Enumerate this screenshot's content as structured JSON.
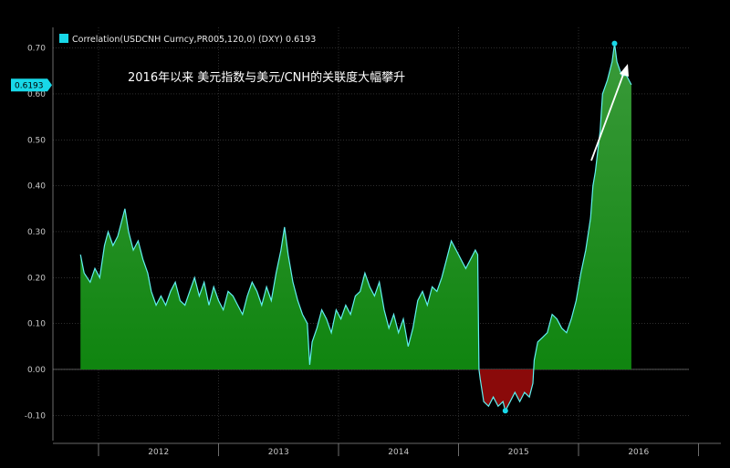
{
  "chart_data": {
    "type": "area",
    "title": "",
    "xlabel": "",
    "ylabel": "",
    "ylim": [
      -0.155,
      0.745
    ],
    "yticks": [
      "0.70",
      "0.60",
      "0.50",
      "0.40",
      "0.30",
      "0.20",
      "0.10",
      "0.00",
      "-0.10"
    ],
    "ytick_values": [
      0.7,
      0.6,
      0.5,
      0.4,
      0.3,
      0.2,
      0.1,
      0.0,
      -0.1
    ],
    "xlim": [
      2011.62,
      2016.92
    ],
    "xticks": [
      "2012",
      "2013",
      "2014",
      "2015",
      "2016"
    ],
    "legend": "Correlation(USDCNH Curncy,PR005,120,0) (DXY) 0.6193",
    "legend_color": "#18d8e8",
    "last_value_label": "0.6193",
    "last_value": 0.6193,
    "annotation": "2016年以来  美元指数与美元/CNH的关联度大幅攀升",
    "grid": true,
    "positive_fill_color": "#0a8a0a",
    "negative_fill_color": "#8a0a0a",
    "line_color": "#60f0f0",
    "series": [
      {
        "values": [
          [
            2011.85,
            0.25
          ],
          [
            2011.88,
            0.21
          ],
          [
            2011.93,
            0.19
          ],
          [
            2011.97,
            0.22
          ],
          [
            2012.01,
            0.2
          ],
          [
            2012.05,
            0.27
          ],
          [
            2012.08,
            0.3
          ],
          [
            2012.12,
            0.27
          ],
          [
            2012.16,
            0.29
          ],
          [
            2012.2,
            0.33
          ],
          [
            2012.22,
            0.35
          ],
          [
            2012.25,
            0.3
          ],
          [
            2012.29,
            0.26
          ],
          [
            2012.33,
            0.28
          ],
          [
            2012.37,
            0.24
          ],
          [
            2012.41,
            0.21
          ],
          [
            2012.44,
            0.17
          ],
          [
            2012.48,
            0.14
          ],
          [
            2012.52,
            0.16
          ],
          [
            2012.56,
            0.14
          ],
          [
            2012.6,
            0.17
          ],
          [
            2012.64,
            0.19
          ],
          [
            2012.68,
            0.15
          ],
          [
            2012.72,
            0.14
          ],
          [
            2012.76,
            0.17
          ],
          [
            2012.8,
            0.2
          ],
          [
            2012.84,
            0.16
          ],
          [
            2012.88,
            0.19
          ],
          [
            2012.92,
            0.14
          ],
          [
            2012.96,
            0.18
          ],
          [
            2013.0,
            0.15
          ],
          [
            2013.04,
            0.13
          ],
          [
            2013.08,
            0.17
          ],
          [
            2013.12,
            0.16
          ],
          [
            2013.16,
            0.14
          ],
          [
            2013.2,
            0.12
          ],
          [
            2013.24,
            0.16
          ],
          [
            2013.28,
            0.19
          ],
          [
            2013.32,
            0.17
          ],
          [
            2013.36,
            0.14
          ],
          [
            2013.4,
            0.18
          ],
          [
            2013.44,
            0.15
          ],
          [
            2013.48,
            0.21
          ],
          [
            2013.52,
            0.26
          ],
          [
            2013.55,
            0.31
          ],
          [
            2013.58,
            0.25
          ],
          [
            2013.62,
            0.19
          ],
          [
            2013.66,
            0.15
          ],
          [
            2013.7,
            0.12
          ],
          [
            2013.74,
            0.1
          ],
          [
            2013.76,
            0.01
          ],
          [
            2013.78,
            0.06
          ],
          [
            2013.82,
            0.09
          ],
          [
            2013.86,
            0.13
          ],
          [
            2013.9,
            0.11
          ],
          [
            2013.94,
            0.08
          ],
          [
            2013.98,
            0.13
          ],
          [
            2014.02,
            0.11
          ],
          [
            2014.06,
            0.14
          ],
          [
            2014.1,
            0.12
          ],
          [
            2014.14,
            0.16
          ],
          [
            2014.18,
            0.17
          ],
          [
            2014.22,
            0.21
          ],
          [
            2014.26,
            0.18
          ],
          [
            2014.3,
            0.16
          ],
          [
            2014.34,
            0.19
          ],
          [
            2014.38,
            0.13
          ],
          [
            2014.42,
            0.09
          ],
          [
            2014.46,
            0.12
          ],
          [
            2014.5,
            0.08
          ],
          [
            2014.54,
            0.11
          ],
          [
            2014.58,
            0.05
          ],
          [
            2014.62,
            0.09
          ],
          [
            2014.66,
            0.15
          ],
          [
            2014.7,
            0.17
          ],
          [
            2014.74,
            0.14
          ],
          [
            2014.78,
            0.18
          ],
          [
            2014.82,
            0.17
          ],
          [
            2014.86,
            0.2
          ],
          [
            2014.9,
            0.24
          ],
          [
            2014.94,
            0.28
          ],
          [
            2014.98,
            0.26
          ],
          [
            2015.02,
            0.24
          ],
          [
            2015.06,
            0.22
          ],
          [
            2015.1,
            0.24
          ],
          [
            2015.14,
            0.26
          ],
          [
            2015.16,
            0.25
          ],
          [
            2015.17,
            0.0
          ],
          [
            2015.18,
            -0.02
          ],
          [
            2015.21,
            -0.07
          ],
          [
            2015.25,
            -0.08
          ],
          [
            2015.29,
            -0.06
          ],
          [
            2015.33,
            -0.08
          ],
          [
            2015.37,
            -0.07
          ],
          [
            2015.39,
            -0.09
          ],
          [
            2015.43,
            -0.07
          ],
          [
            2015.47,
            -0.05
          ],
          [
            2015.51,
            -0.07
          ],
          [
            2015.55,
            -0.05
          ],
          [
            2015.59,
            -0.06
          ],
          [
            2015.62,
            -0.03
          ],
          [
            2015.63,
            0.02
          ],
          [
            2015.66,
            0.06
          ],
          [
            2015.7,
            0.07
          ],
          [
            2015.74,
            0.08
          ],
          [
            2015.78,
            0.12
          ],
          [
            2015.82,
            0.11
          ],
          [
            2015.86,
            0.09
          ],
          [
            2015.9,
            0.08
          ],
          [
            2015.94,
            0.11
          ],
          [
            2015.98,
            0.15
          ],
          [
            2016.02,
            0.21
          ],
          [
            2016.06,
            0.26
          ],
          [
            2016.1,
            0.33
          ],
          [
            2016.12,
            0.4
          ],
          [
            2016.14,
            0.43
          ],
          [
            2016.18,
            0.52
          ],
          [
            2016.2,
            0.6
          ],
          [
            2016.24,
            0.63
          ],
          [
            2016.28,
            0.67
          ],
          [
            2016.3,
            0.71
          ],
          [
            2016.32,
            0.67
          ],
          [
            2016.36,
            0.64
          ],
          [
            2016.4,
            0.64
          ],
          [
            2016.44,
            0.62
          ]
        ]
      }
    ],
    "markers": [
      {
        "label": "max",
        "x": 2016.3,
        "y": 0.71
      },
      {
        "label": "min",
        "x": 2015.39,
        "y": -0.09
      }
    ]
  }
}
